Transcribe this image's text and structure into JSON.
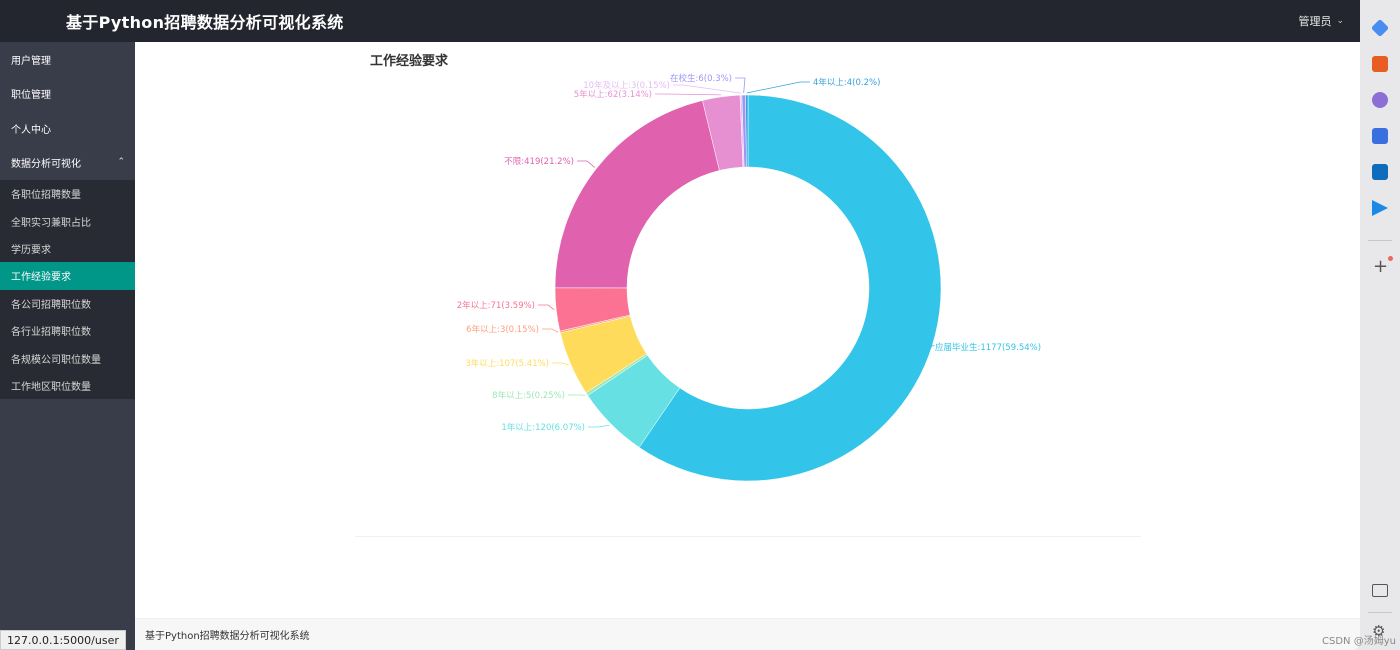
{
  "header": {
    "title": "基于Python招聘数据分析可视化系统",
    "user_label": "管理员"
  },
  "sidebar": {
    "items": [
      {
        "label": "用户管理"
      },
      {
        "label": "职位管理"
      },
      {
        "label": "个人中心"
      },
      {
        "label": "数据分析可视化"
      }
    ],
    "subitems": [
      {
        "label": "各职位招聘数量"
      },
      {
        "label": "全职实习兼职占比"
      },
      {
        "label": "学历要求"
      },
      {
        "label": "工作经验要求"
      },
      {
        "label": "各公司招聘职位数"
      },
      {
        "label": "各行业招聘职位数"
      },
      {
        "label": "各规模公司职位数量"
      },
      {
        "label": "工作地区职位数量"
      }
    ]
  },
  "footer": {
    "text": "基于Python招聘数据分析可视化系统"
  },
  "status_url": "127.0.0.1:5000/user",
  "watermark": "CSDN @汤姆yu",
  "chart_data": {
    "type": "pie",
    "title": "工作经验要求",
    "donut": true,
    "slices": [
      {
        "name": "应届毕业生",
        "value": 1177,
        "percent": "59.54%",
        "label": "应届毕业生:1177(59.54%)",
        "color": "#32c5e9"
      },
      {
        "name": "1年以上",
        "value": 120,
        "percent": "6.07%",
        "label": "1年以上:120(6.07%)",
        "color": "#67e0e3"
      },
      {
        "name": "8年以上",
        "value": 5,
        "percent": "0.25%",
        "label": "8年以上:5(0.25%)",
        "color": "#9fe6b8"
      },
      {
        "name": "3年以上",
        "value": 107,
        "percent": "5.41%",
        "label": "3年以上:107(5.41%)",
        "color": "#ffdb5c"
      },
      {
        "name": "6年以上",
        "value": 3,
        "percent": "0.15%",
        "label": "6年以上:3(0.15%)",
        "color": "#ff9f7f"
      },
      {
        "name": "2年以上",
        "value": 71,
        "percent": "3.59%",
        "label": "2年以上:71(3.59%)",
        "color": "#fb7293"
      },
      {
        "name": "不限",
        "value": 419,
        "percent": "21.2%",
        "label": "不限:419(21.2%)",
        "color": "#e062ae"
      },
      {
        "name": "5年以上",
        "value": 62,
        "percent": "3.14%",
        "label": "5年以上:62(3.14%)",
        "color": "#e690d1"
      },
      {
        "name": "10年及以上",
        "value": 3,
        "percent": "0.15%",
        "label": "10年及以上:3(0.15%)",
        "color": "#e7bcf3"
      },
      {
        "name": "在校生",
        "value": 6,
        "percent": "0.3%",
        "label": "在校生:6(0.3%)",
        "color": "#9d96f5"
      },
      {
        "name": "4年以上",
        "value": 4,
        "percent": "0.2%",
        "label": "4年以上:4(0.2%)",
        "color": "#37a2da"
      }
    ]
  }
}
